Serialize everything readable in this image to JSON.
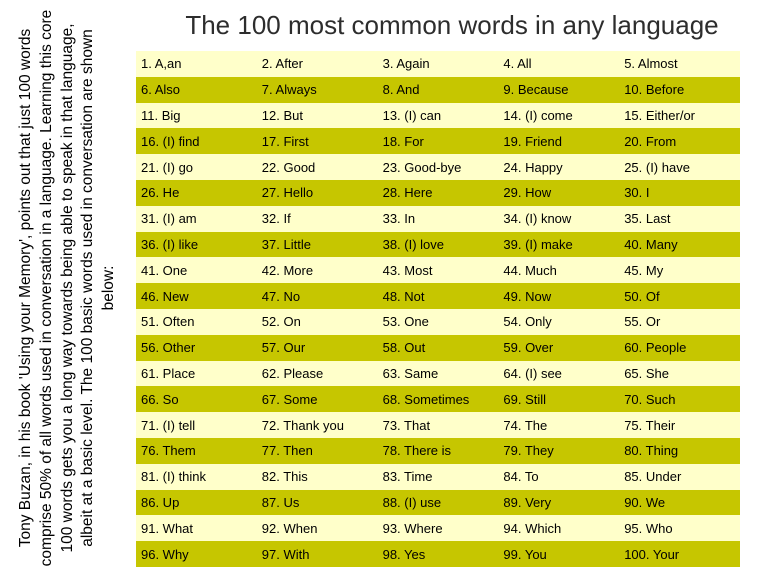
{
  "page": {
    "title": "The 100 most common words in any language",
    "side_note": "Tony Buzan, in his book 'Using your Memory', points out that just 100 words comprise 50% of all words used in conversation in a language. Learning this core 100 words gets you a long way towards being able to speak in that language, albeit at a basic level. The 100 basic words used in conversation are shown below:"
  },
  "table": {
    "colors": {
      "pale_row": "#ffffca",
      "olive_row": "#c6c600"
    },
    "rows": [
      [
        "1. A,an",
        "2. After",
        "3. Again",
        "4. All",
        "5. Almost"
      ],
      [
        "6. Also",
        "7. Always",
        "8. And",
        "9. Because",
        "10. Before"
      ],
      [
        "11. Big",
        "12. But",
        "13. (I) can",
        "14. (I) come",
        "15. Either/or"
      ],
      [
        "16. (I) find",
        "17. First",
        "18. For",
        "19. Friend",
        "20. From"
      ],
      [
        "21. (I) go",
        "22. Good",
        "23. Good-bye",
        "24. Happy",
        "25. (I) have"
      ],
      [
        "26. He",
        "27. Hello",
        "28. Here",
        "29. How",
        "30. I"
      ],
      [
        "31. (I) am",
        "32. If",
        "33. In",
        "34. (I) know",
        "35. Last"
      ],
      [
        "36. (I) like",
        "37. Little",
        "38. (I) love",
        "39. (I) make",
        "40. Many"
      ],
      [
        "41. One",
        "42. More",
        "43. Most",
        "44. Much",
        "45. My"
      ],
      [
        "46. New",
        "47. No",
        "48. Not",
        "49. Now",
        "50. Of"
      ],
      [
        "51. Often",
        "52. On",
        "53. One",
        "54. Only",
        "55. Or"
      ],
      [
        "56. Other",
        "57. Our",
        "58. Out",
        "59. Over",
        "60. People"
      ],
      [
        "61. Place",
        "62. Please",
        "63. Same",
        "64. (I) see",
        "65. She"
      ],
      [
        "66. So",
        "67. Some",
        "68. Sometimes",
        "69. Still",
        "70. Such"
      ],
      [
        "71. (I) tell",
        "72. Thank you",
        "73. That",
        "74. The",
        "75. Their"
      ],
      [
        "76. Them",
        "77. Then",
        "78. There is",
        "79. They",
        "80. Thing"
      ],
      [
        "81. (I) think",
        "82. This",
        "83. Time",
        "84. To",
        "85. Under"
      ],
      [
        "86. Up",
        "87. Us",
        "88. (I) use",
        "89. Very",
        "90. We"
      ],
      [
        "91. What",
        "92. When",
        "93. Where",
        "94. Which",
        "95. Who"
      ],
      [
        "96. Why",
        "97. With",
        "98. Yes",
        "99. You",
        "100. Your"
      ]
    ]
  }
}
